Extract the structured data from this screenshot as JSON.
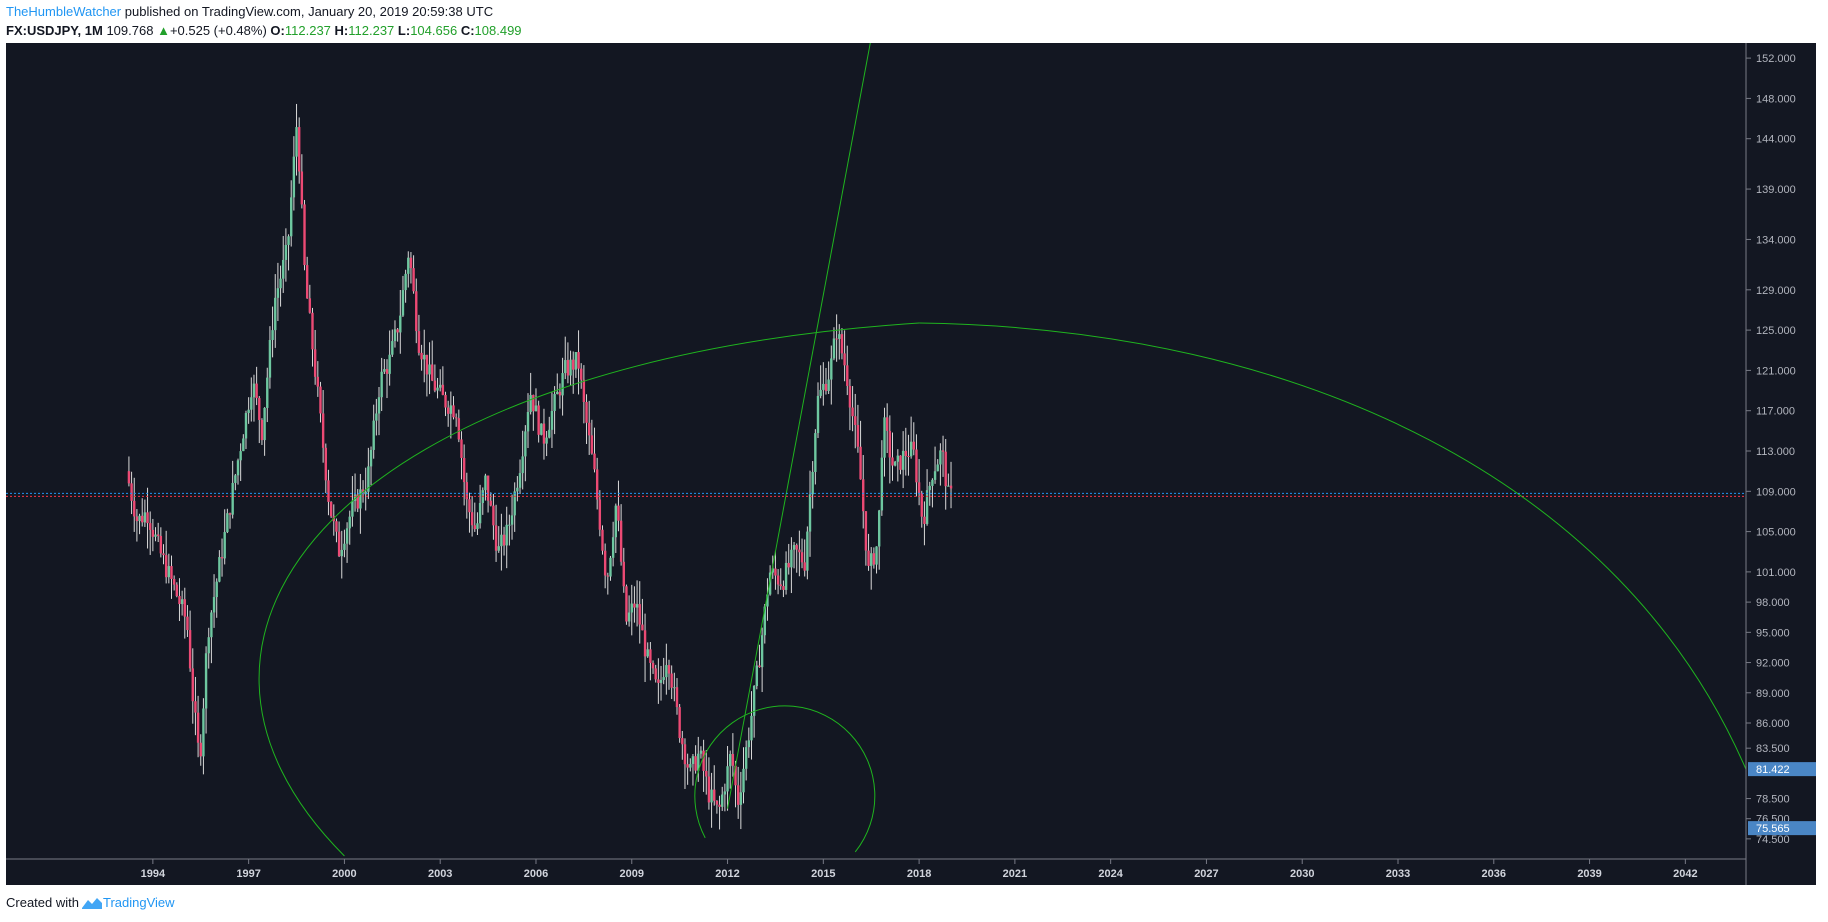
{
  "header": {
    "author": "TheHumbleWatcher",
    "published_text": "published on TradingView.com, January 20, 2019 20:59:38 UTC",
    "symbol": "FX:USDJPY, 1M",
    "last_price": "109.768",
    "change": "+0.525 (+0.48%)",
    "open_label": "O:",
    "open": "112.237",
    "high_label": "H:",
    "high": "112.237",
    "low_label": "L:",
    "low": "104.656",
    "close_label": "C:",
    "close": "108.499"
  },
  "footer": {
    "created_with": "Created with",
    "brand": "TradingView"
  },
  "colors": {
    "background": "#131722",
    "up": "#6ec7a0",
    "down": "#ec4a74",
    "wick": "#d9d9d9",
    "drawing": "#1fb41f",
    "price_line_red": "#f23645",
    "price_line_blue": "#2196f3",
    "axis_badge": "#4a86c5"
  },
  "chart_data": {
    "type": "candlestick",
    "symbol": "FX:USDJPY",
    "interval": "1M",
    "price_axis_ticks": [
      "152.000",
      "148.000",
      "144.000",
      "139.000",
      "134.000",
      "129.000",
      "125.000",
      "121.000",
      "117.000",
      "113.000",
      "109.000",
      "105.000",
      "101.000",
      "98.000",
      "95.000",
      "92.000",
      "89.000",
      "86.000",
      "83.500",
      "78.500",
      "76.500",
      "74.500"
    ],
    "price_axis_badges": [
      "81.422",
      "75.565"
    ],
    "time_axis_ticks": [
      "1994",
      "1997",
      "2000",
      "2003",
      "2006",
      "2009",
      "2012",
      "2015",
      "2018",
      "2021",
      "2024",
      "2027",
      "2030",
      "2033",
      "2036",
      "2039",
      "2042"
    ],
    "y_range": [
      72.5,
      153.5
    ],
    "x_range": [
      1989.4,
      2043.9
    ],
    "current_price_line": 108.499,
    "price_path": [
      [
        1993.25,
        111
      ],
      [
        1993.6,
        106
      ],
      [
        1993.9,
        107
      ],
      [
        1994.3,
        103
      ],
      [
        1994.8,
        99
      ],
      [
        1995.15,
        96
      ],
      [
        1995.35,
        88
      ],
      [
        1995.55,
        82
      ],
      [
        1995.8,
        95
      ],
      [
        1996.3,
        104
      ],
      [
        1996.8,
        113
      ],
      [
        1997.2,
        120
      ],
      [
        1997.5,
        115
      ],
      [
        1997.9,
        128
      ],
      [
        1998.3,
        133
      ],
      [
        1998.6,
        146
      ],
      [
        1998.85,
        130
      ],
      [
        1999.2,
        120
      ],
      [
        1999.6,
        108
      ],
      [
        1999.9,
        103
      ],
      [
        2000.3,
        107
      ],
      [
        2000.8,
        110
      ],
      [
        2001.2,
        120
      ],
      [
        2001.5,
        122
      ],
      [
        2001.8,
        126
      ],
      [
        2002.1,
        133
      ],
      [
        2002.4,
        124
      ],
      [
        2002.8,
        120
      ],
      [
        2003.2,
        118
      ],
      [
        2003.6,
        117
      ],
      [
        2003.9,
        108
      ],
      [
        2004.2,
        105
      ],
      [
        2004.5,
        110
      ],
      [
        2004.9,
        103
      ],
      [
        2005.2,
        105
      ],
      [
        2005.6,
        112
      ],
      [
        2005.9,
        119
      ],
      [
        2006.3,
        114
      ],
      [
        2006.7,
        118
      ],
      [
        2007.0,
        121
      ],
      [
        2007.4,
        122
      ],
      [
        2007.6,
        117
      ],
      [
        2007.9,
        111
      ],
      [
        2008.3,
        100
      ],
      [
        2008.6,
        108
      ],
      [
        2008.9,
        96
      ],
      [
        2009.2,
        98
      ],
      [
        2009.6,
        92
      ],
      [
        2009.9,
        89
      ],
      [
        2010.2,
        93
      ],
      [
        2010.6,
        85
      ],
      [
        2010.9,
        81
      ],
      [
        2011.2,
        83
      ],
      [
        2011.5,
        79
      ],
      [
        2011.8,
        77
      ],
      [
        2012.2,
        83
      ],
      [
        2012.4,
        78
      ],
      [
        2012.8,
        86
      ],
      [
        2013.1,
        93
      ],
      [
        2013.4,
        101
      ],
      [
        2013.8,
        100
      ],
      [
        2014.2,
        103
      ],
      [
        2014.5,
        102
      ],
      [
        2014.9,
        118
      ],
      [
        2015.3,
        121
      ],
      [
        2015.5,
        125
      ],
      [
        2015.8,
        121
      ],
      [
        2016.2,
        112
      ],
      [
        2016.5,
        101
      ],
      [
        2016.8,
        104
      ],
      [
        2016.95,
        116
      ],
      [
        2017.3,
        111
      ],
      [
        2017.7,
        113
      ],
      [
        2017.9,
        113
      ],
      [
        2018.2,
        106
      ],
      [
        2018.5,
        111
      ],
      [
        2018.8,
        113
      ],
      [
        2019.0,
        108.5
      ]
    ],
    "drawings": [
      {
        "type": "trend_line",
        "from": [
          2012.0,
          77.5
        ],
        "to": [
          2016.5,
          154.0
        ]
      },
      {
        "type": "arc",
        "description": "small arc around 2011-2015 low"
      },
      {
        "type": "arc",
        "description": "large arc from 2000 to 2043"
      }
    ]
  }
}
